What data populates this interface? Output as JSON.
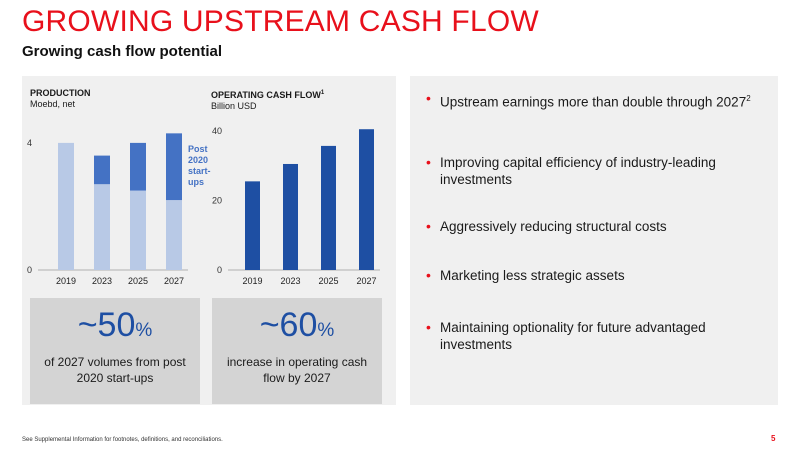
{
  "header": {
    "title": "GROWING UPSTREAM CASH FLOW",
    "subtitle": "Growing cash flow potential"
  },
  "chart_data": [
    {
      "type": "bar",
      "title": "PRODUCTION",
      "subtitle": "Moebd, net",
      "categories": [
        "2019",
        "2023",
        "2025",
        "2027"
      ],
      "series": [
        {
          "name": "",
          "values": [
            4.0,
            2.7,
            2.5,
            2.2
          ],
          "color": "#b8c9e6"
        },
        {
          "name": "Post 2020 start-ups",
          "values": [
            0.0,
            0.9,
            1.5,
            2.1
          ],
          "color": "#4472c4"
        }
      ],
      "stacked": true,
      "ylim": [
        0,
        4.5
      ],
      "yticks": [
        0,
        4
      ],
      "annotation": "Post 2020 start-ups"
    },
    {
      "type": "bar",
      "title": "OPERATING CASH FLOW",
      "title_sup": "1",
      "subtitle": "Billion USD",
      "categories": [
        "2019",
        "2023",
        "2025",
        "2027"
      ],
      "series": [
        {
          "name": "",
          "values": [
            25.5,
            30.5,
            35.7,
            40.5
          ],
          "color": "#1e4fa3"
        }
      ],
      "ylim": [
        0,
        42
      ],
      "yticks": [
        0,
        20,
        40
      ]
    }
  ],
  "stats": [
    {
      "value": "~50",
      "unit": "%",
      "desc": "of 2027 volumes from post 2020 start-ups"
    },
    {
      "value": "~60",
      "unit": "%",
      "desc": "increase in operating cash flow by 2027"
    }
  ],
  "bullets": [
    {
      "text": "Upstream earnings more than double through 2027",
      "sup": "2"
    },
    {
      "text": "Improving capital efficiency of industry-leading investments",
      "sup": ""
    },
    {
      "text": "Aggressively reducing structural costs",
      "sup": ""
    },
    {
      "text": "Marketing less strategic assets",
      "sup": ""
    },
    {
      "text": "Maintaining optionality for future advantaged investments",
      "sup": ""
    }
  ],
  "footer": {
    "note": "See Supplemental Information for footnotes, definitions, and reconciliations.",
    "page": "5"
  },
  "colors": {
    "accent": "#e8101b",
    "dark_blue": "#1e4fa3",
    "mid_blue": "#4472c4",
    "light_blue": "#b8c9e6"
  }
}
